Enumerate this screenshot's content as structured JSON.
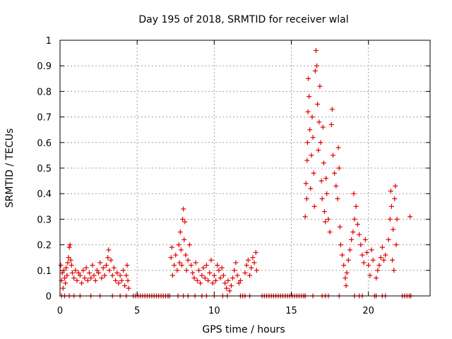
{
  "chart_data": {
    "type": "scatter",
    "title": "Day 195 of 2018, SRMTID for receiver wlal",
    "xlabel": "GPS time / hours",
    "ylabel": "SRMTID / TECUs",
    "xlim": [
      0,
      24
    ],
    "ylim": [
      0,
      1
    ],
    "xticks": [
      0,
      5,
      10,
      15,
      20
    ],
    "xtick_labels": [
      "0",
      "5",
      "10",
      "15",
      "20"
    ],
    "yticks": [
      0,
      0.1,
      0.2,
      0.3,
      0.4,
      0.5,
      0.6,
      0.7,
      0.8,
      0.9,
      1
    ],
    "ytick_labels": [
      "0",
      "0.1",
      "0.2",
      "0.3",
      "0.4",
      "0.5",
      "0.6",
      "0.7",
      "0.8",
      "0.9",
      "1"
    ],
    "grid": true,
    "marker": "+",
    "marker_color": "#e00000",
    "series": [
      {
        "name": "SRMTID",
        "points": [
          [
            0.05,
            0.12
          ],
          [
            0.1,
            0.06
          ],
          [
            0.15,
            0.09
          ],
          [
            0.2,
            0.03
          ],
          [
            0.25,
            0.1
          ],
          [
            0.3,
            0.07
          ],
          [
            0.35,
            0.05
          ],
          [
            0.4,
            0.11
          ],
          [
            0.45,
            0.08
          ],
          [
            0.5,
            0.13
          ],
          [
            0.55,
            0.15
          ],
          [
            0.6,
            0.19
          ],
          [
            0.65,
            0.2
          ],
          [
            0.7,
            0.14
          ],
          [
            0.75,
            0.12
          ],
          [
            0.8,
            0.09
          ],
          [
            0.9,
            0.07
          ],
          [
            1.0,
            0.1
          ],
          [
            1.1,
            0.06
          ],
          [
            1.2,
            0.09
          ],
          [
            1.3,
            0.08
          ],
          [
            1.4,
            0.05
          ],
          [
            1.5,
            0.1
          ],
          [
            1.6,
            0.07
          ],
          [
            1.7,
            0.11
          ],
          [
            1.8,
            0.06
          ],
          [
            1.9,
            0.09
          ],
          [
            2.0,
            0.07
          ],
          [
            2.1,
            0.12
          ],
          [
            2.2,
            0.08
          ],
          [
            2.3,
            0.06
          ],
          [
            2.4,
            0.1
          ],
          [
            2.5,
            0.09
          ],
          [
            2.6,
            0.13
          ],
          [
            2.7,
            0.07
          ],
          [
            2.8,
            0.11
          ],
          [
            2.9,
            0.08
          ],
          [
            3.0,
            0.12
          ],
          [
            3.1,
            0.15
          ],
          [
            3.15,
            0.18
          ],
          [
            3.2,
            0.1
          ],
          [
            3.3,
            0.14
          ],
          [
            3.4,
            0.08
          ],
          [
            3.5,
            0.11
          ],
          [
            3.6,
            0.06
          ],
          [
            3.7,
            0.09
          ],
          [
            3.8,
            0.05
          ],
          [
            3.9,
            0.08
          ],
          [
            4.0,
            0.06
          ],
          [
            4.1,
            0.1
          ],
          [
            4.2,
            0.04
          ],
          [
            4.3,
            0.08
          ],
          [
            4.35,
            0.12
          ],
          [
            4.4,
            0.06
          ],
          [
            4.45,
            0.03
          ],
          [
            7.2,
            0.15
          ],
          [
            7.25,
            0.19
          ],
          [
            7.3,
            0.08
          ],
          [
            7.4,
            0.12
          ],
          [
            7.5,
            0.16
          ],
          [
            7.6,
            0.1
          ],
          [
            7.7,
            0.2
          ],
          [
            7.75,
            0.13
          ],
          [
            7.8,
            0.25
          ],
          [
            7.85,
            0.18
          ],
          [
            7.9,
            0.12
          ],
          [
            7.95,
            0.3
          ],
          [
            8.0,
            0.34
          ],
          [
            8.05,
            0.22
          ],
          [
            8.1,
            0.29
          ],
          [
            8.15,
            0.16
          ],
          [
            8.2,
            0.1
          ],
          [
            8.3,
            0.14
          ],
          [
            8.4,
            0.2
          ],
          [
            8.5,
            0.12
          ],
          [
            8.6,
            0.09
          ],
          [
            8.7,
            0.07
          ],
          [
            8.8,
            0.13
          ],
          [
            8.9,
            0.06
          ],
          [
            9.0,
            0.1
          ],
          [
            9.1,
            0.05
          ],
          [
            9.2,
            0.08
          ],
          [
            9.3,
            0.11
          ],
          [
            9.4,
            0.07
          ],
          [
            9.5,
            0.12
          ],
          [
            9.6,
            0.06
          ],
          [
            9.7,
            0.09
          ],
          [
            9.8,
            0.14
          ],
          [
            9.9,
            0.05
          ],
          [
            10.0,
            0.08
          ],
          [
            10.1,
            0.06
          ],
          [
            10.2,
            0.12
          ],
          [
            10.3,
            0.1
          ],
          [
            10.4,
            0.07
          ],
          [
            10.5,
            0.11
          ],
          [
            10.6,
            0.08
          ],
          [
            10.7,
            0.05
          ],
          [
            10.8,
            0.03
          ],
          [
            10.9,
            0.06
          ],
          [
            11.0,
            0.02
          ],
          [
            11.1,
            0.04
          ],
          [
            11.2,
            0.07
          ],
          [
            11.3,
            0.1
          ],
          [
            11.4,
            0.13
          ],
          [
            11.5,
            0.08
          ],
          [
            11.6,
            0.05
          ],
          [
            11.7,
            0.06
          ],
          [
            12.0,
            0.09
          ],
          [
            12.1,
            0.12
          ],
          [
            12.2,
            0.14
          ],
          [
            12.3,
            0.08
          ],
          [
            12.4,
            0.11
          ],
          [
            12.5,
            0.15
          ],
          [
            12.6,
            0.13
          ],
          [
            12.7,
            0.17
          ],
          [
            12.75,
            0.1
          ],
          [
            15.9,
            0.31
          ],
          [
            15.95,
            0.44
          ],
          [
            16.0,
            0.38
          ],
          [
            16.02,
            0.53
          ],
          [
            16.05,
            0.6
          ],
          [
            16.08,
            0.72
          ],
          [
            16.1,
            0.85
          ],
          [
            16.15,
            0.78
          ],
          [
            16.2,
            0.65
          ],
          [
            16.25,
            0.42
          ],
          [
            16.3,
            0.55
          ],
          [
            16.35,
            0.7
          ],
          [
            16.4,
            0.62
          ],
          [
            16.45,
            0.48
          ],
          [
            16.5,
            0.35
          ],
          [
            16.55,
            0.88
          ],
          [
            16.6,
            0.96
          ],
          [
            16.65,
            0.9
          ],
          [
            16.7,
            0.75
          ],
          [
            16.75,
            0.57
          ],
          [
            16.8,
            0.68
          ],
          [
            16.85,
            0.82
          ],
          [
            16.9,
            0.6
          ],
          [
            16.95,
            0.45
          ],
          [
            17.0,
            0.38
          ],
          [
            17.05,
            0.66
          ],
          [
            17.1,
            0.52
          ],
          [
            17.15,
            0.33
          ],
          [
            17.2,
            0.29
          ],
          [
            17.25,
            0.46
          ],
          [
            17.3,
            0.4
          ],
          [
            17.4,
            0.3
          ],
          [
            17.5,
            0.25
          ],
          [
            17.6,
            0.67
          ],
          [
            17.65,
            0.73
          ],
          [
            17.7,
            0.55
          ],
          [
            17.8,
            0.48
          ],
          [
            17.9,
            0.43
          ],
          [
            18.0,
            0.38
          ],
          [
            18.05,
            0.58
          ],
          [
            18.1,
            0.5
          ],
          [
            18.15,
            0.27
          ],
          [
            18.2,
            0.2
          ],
          [
            18.3,
            0.16
          ],
          [
            18.4,
            0.12
          ],
          [
            18.5,
            0.07
          ],
          [
            18.55,
            0.04
          ],
          [
            18.6,
            0.09
          ],
          [
            18.7,
            0.14
          ],
          [
            18.8,
            0.18
          ],
          [
            18.9,
            0.22
          ],
          [
            19.0,
            0.25
          ],
          [
            19.05,
            0.4
          ],
          [
            19.1,
            0.3
          ],
          [
            19.2,
            0.35
          ],
          [
            19.3,
            0.28
          ],
          [
            19.4,
            0.24
          ],
          [
            19.5,
            0.2
          ],
          [
            19.6,
            0.16
          ],
          [
            19.7,
            0.13
          ],
          [
            19.8,
            0.22
          ],
          [
            19.9,
            0.17
          ],
          [
            20.0,
            0.12
          ],
          [
            20.1,
            0.08
          ],
          [
            20.2,
            0.18
          ],
          [
            20.3,
            0.14
          ],
          [
            20.5,
            0.07
          ],
          [
            20.6,
            0.1
          ],
          [
            20.7,
            0.12
          ],
          [
            20.8,
            0.15
          ],
          [
            20.9,
            0.19
          ],
          [
            21.0,
            0.14
          ],
          [
            21.1,
            0.16
          ],
          [
            21.3,
            0.22
          ],
          [
            21.4,
            0.3
          ],
          [
            21.45,
            0.41
          ],
          [
            21.5,
            0.35
          ],
          [
            21.55,
            0.14
          ],
          [
            21.6,
            0.26
          ],
          [
            21.65,
            0.1
          ],
          [
            21.7,
            0.38
          ],
          [
            21.75,
            0.43
          ],
          [
            21.8,
            0.2
          ],
          [
            21.85,
            0.3
          ],
          [
            22.7,
            0.31
          ]
        ]
      }
    ],
    "zero_value_hours": [
      0.1,
      0.3,
      0.6,
      0.9,
      1.3,
      2.0,
      2.6,
      3.4,
      3.9,
      4.3,
      4.75,
      4.9,
      5.05,
      5.2,
      5.35,
      5.5,
      5.65,
      5.8,
      5.95,
      6.1,
      6.25,
      6.4,
      6.55,
      6.7,
      6.85,
      7.0,
      7.1,
      7.65,
      8.0,
      8.3,
      8.75,
      9.2,
      9.5,
      10.0,
      10.55,
      10.85,
      11.7,
      11.85,
      12.0,
      12.3,
      13.1,
      13.25,
      13.4,
      13.55,
      13.7,
      13.85,
      14.0,
      14.15,
      14.3,
      14.45,
      14.6,
      14.75,
      14.9,
      15.05,
      15.2,
      15.35,
      15.5,
      15.65,
      15.8,
      15.9,
      16.4,
      17.0,
      17.2,
      17.4,
      18.1,
      19.1,
      19.4,
      19.6,
      20.4,
      20.5,
      20.9,
      21.1,
      22.2,
      22.35,
      22.5,
      22.65,
      22.75
    ]
  }
}
